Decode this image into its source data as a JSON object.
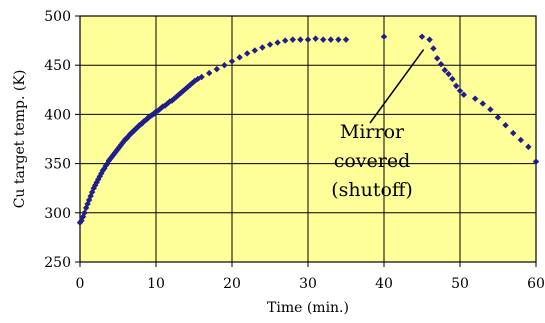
{
  "chart_data": {
    "type": "scatter",
    "title": "",
    "xlabel": "Time (min.)",
    "ylabel": "Cu target temp. (K)",
    "xlim": [
      0,
      60
    ],
    "ylim": [
      250,
      500
    ],
    "xticks": [
      0,
      10,
      20,
      30,
      40,
      50,
      60
    ],
    "yticks": [
      250,
      300,
      350,
      400,
      450,
      500
    ],
    "grid": true,
    "legend": "none",
    "colors": {
      "plot_background": "#FFFF99",
      "marker": "#1F1F8A",
      "grid": "#000000"
    },
    "annotation": {
      "lines": [
        "Mirror",
        "covered",
        "(shutoff)"
      ],
      "points_to": {
        "x": 46.0,
        "y": 476
      }
    },
    "series": [
      {
        "marker": "diamond",
        "points": [
          [
            0.0,
            290
          ],
          [
            0.2,
            292
          ],
          [
            0.4,
            296
          ],
          [
            0.6,
            300
          ],
          [
            0.8,
            305
          ],
          [
            1.0,
            309
          ],
          [
            1.2,
            313
          ],
          [
            1.4,
            317
          ],
          [
            1.6,
            321
          ],
          [
            1.8,
            325
          ],
          [
            2.0,
            328
          ],
          [
            2.2,
            331
          ],
          [
            2.4,
            334
          ],
          [
            2.6,
            337
          ],
          [
            2.8,
            340
          ],
          [
            3.0,
            343
          ],
          [
            3.2,
            345
          ],
          [
            3.4,
            348
          ],
          [
            3.6,
            350
          ],
          [
            3.8,
            353
          ],
          [
            4.0,
            355
          ],
          [
            4.2,
            357
          ],
          [
            4.4,
            359
          ],
          [
            4.6,
            361
          ],
          [
            4.8,
            363
          ],
          [
            5.0,
            365
          ],
          [
            5.2,
            367
          ],
          [
            5.4,
            369
          ],
          [
            5.6,
            371
          ],
          [
            5.8,
            373
          ],
          [
            6.0,
            375
          ],
          [
            6.2,
            376
          ],
          [
            6.4,
            378
          ],
          [
            6.6,
            380
          ],
          [
            6.8,
            381
          ],
          [
            7.0,
            383
          ],
          [
            7.2,
            384
          ],
          [
            7.4,
            386
          ],
          [
            7.6,
            387
          ],
          [
            7.8,
            389
          ],
          [
            8.0,
            390
          ],
          [
            8.2,
            391
          ],
          [
            8.4,
            393
          ],
          [
            8.6,
            394
          ],
          [
            8.8,
            395
          ],
          [
            9.0,
            397
          ],
          [
            9.2,
            398
          ],
          [
            9.4,
            399
          ],
          [
            9.6,
            400
          ],
          [
            9.8,
            401
          ],
          [
            10.0,
            403
          ],
          [
            10.3,
            404
          ],
          [
            10.6,
            406
          ],
          [
            10.9,
            408
          ],
          [
            11.2,
            409
          ],
          [
            11.5,
            411
          ],
          [
            11.8,
            413
          ],
          [
            12.1,
            414
          ],
          [
            12.4,
            416
          ],
          [
            12.7,
            418
          ],
          [
            13.0,
            420
          ],
          [
            13.3,
            422
          ],
          [
            13.6,
            424
          ],
          [
            13.9,
            426
          ],
          [
            14.2,
            428
          ],
          [
            14.5,
            430
          ],
          [
            14.8,
            432
          ],
          [
            15.1,
            434
          ],
          [
            15.5,
            436
          ],
          [
            16.0,
            438
          ],
          [
            17.0,
            442
          ],
          [
            18.0,
            446
          ],
          [
            19.0,
            450
          ],
          [
            20.0,
            454
          ],
          [
            21.0,
            458
          ],
          [
            22.0,
            462
          ],
          [
            23.0,
            465
          ],
          [
            24.0,
            468
          ],
          [
            25.0,
            471
          ],
          [
            26.0,
            473
          ],
          [
            27.0,
            475
          ],
          [
            28.0,
            476
          ],
          [
            29.0,
            476
          ],
          [
            30.0,
            476
          ],
          [
            31.0,
            477
          ],
          [
            32.0,
            476
          ],
          [
            33.0,
            476
          ],
          [
            34.0,
            476
          ],
          [
            35.0,
            476
          ],
          [
            40.0,
            479
          ],
          [
            45.0,
            479
          ],
          [
            46.0,
            476
          ],
          [
            46.5,
            467
          ],
          [
            47.0,
            457
          ],
          [
            47.5,
            451
          ],
          [
            48.0,
            445
          ],
          [
            48.5,
            441
          ],
          [
            49.0,
            436
          ],
          [
            49.5,
            429
          ],
          [
            50.0,
            424
          ],
          [
            50.5,
            420
          ],
          [
            52.0,
            416
          ],
          [
            53.0,
            411
          ],
          [
            54.0,
            405
          ],
          [
            55.0,
            397
          ],
          [
            56.0,
            389
          ],
          [
            57.0,
            381
          ],
          [
            58.0,
            374
          ],
          [
            59.0,
            367
          ],
          [
            60.0,
            352
          ]
        ]
      }
    ]
  }
}
